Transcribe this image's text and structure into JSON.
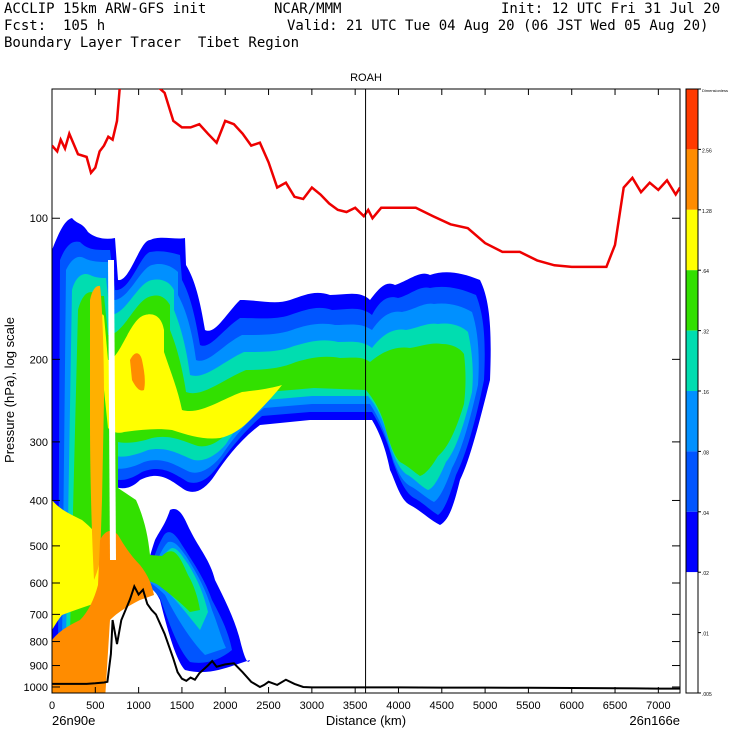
{
  "header": {
    "line1_left": "ACCLIP 15km ARW-GFS init",
    "line1_mid": "NCAR/MMM",
    "line1_right": "Init: 12 UTC Fri 31 Jul 20",
    "line2_left": "Fcst:  105 h",
    "line2_right": "Valid: 21 UTC Tue 04 Aug 20 (06 JST Wed 05 Aug 20)",
    "line3_left": "Boundary Layer Tracer  Tibet Region"
  },
  "chart_data": {
    "type": "heatmap",
    "title": "ROAH",
    "xlabel": "Distance (km)",
    "ylabel": "Pressure (hPa), log scale",
    "xlim": [
      0,
      7250
    ],
    "ylim": [
      1030,
      53
    ],
    "x_ticks": [
      0,
      500,
      1000,
      1500,
      2000,
      2500,
      3000,
      3500,
      4000,
      4500,
      5000,
      5500,
      6000,
      6500,
      7000
    ],
    "y_ticks": [
      100,
      200,
      300,
      400,
      500,
      600,
      700,
      800,
      900,
      1000
    ],
    "x_start_label": "26n90e",
    "x_end_label": "26n166e",
    "marker_line_x": 3620,
    "colorbar": {
      "levels": [
        "Dimensionless",
        "2.56",
        "1.28",
        ".64",
        ".32",
        ".16",
        ".08",
        ".04",
        ".02",
        ".01",
        ".005"
      ],
      "colors": [
        "#ff3a00",
        "#ff8c00",
        "#ffff00",
        "#32e000",
        "#00ddb0",
        "#0090ff",
        "#0055ff",
        "#0000ff",
        "#ffffff",
        "#ffffff"
      ]
    },
    "series": [
      {
        "name": "tropopause",
        "color": "#ee0000",
        "x": [
          0,
          60,
          100,
          150,
          200,
          300,
          400,
          450,
          500,
          550,
          600,
          650,
          700,
          750,
          800,
          900,
          1000,
          1050,
          1100,
          1150,
          1200,
          1300,
          1400,
          1500,
          1600,
          1700,
          1800,
          1900,
          2000,
          2100,
          2200,
          2300,
          2400,
          2500,
          2600,
          2700,
          2800,
          2900,
          3000,
          3100,
          3200,
          3300,
          3400,
          3500,
          3600,
          3650,
          3700,
          3800,
          3900,
          4000,
          4200,
          4400,
          4600,
          4800,
          5000,
          5200,
          5400,
          5600,
          5800,
          6000,
          6200,
          6400,
          6500,
          6600,
          6700,
          6800,
          6900,
          7000,
          7100,
          7200,
          7250
        ],
        "y": [
          70,
          72,
          68,
          71,
          66,
          73,
          74,
          80,
          78,
          72,
          70,
          67,
          68,
          62,
          48,
          48,
          48,
          52,
          50,
          47,
          52,
          54,
          62,
          64,
          64,
          63,
          66,
          69,
          62,
          63,
          66,
          70,
          69,
          76,
          86,
          84,
          90,
          91,
          86,
          89,
          93,
          96,
          97,
          95,
          99,
          96,
          100,
          95,
          95,
          95,
          95,
          99,
          103,
          105,
          113,
          118,
          118,
          123,
          126,
          127,
          127,
          127,
          114,
          86,
          82,
          88,
          84,
          87,
          83,
          89,
          86
        ]
      },
      {
        "name": "terrain",
        "color": "#000000",
        "x": [
          0,
          100,
          200,
          300,
          400,
          500,
          600,
          640,
          680,
          700,
          750,
          800,
          900,
          950,
          1000,
          1050,
          1100,
          1150,
          1200,
          1300,
          1400,
          1450,
          1500,
          1550,
          1600,
          1650,
          1700,
          1800,
          1850,
          1900,
          2000,
          2100,
          2200,
          2300,
          2400,
          2450,
          2500,
          2600,
          2700,
          2800,
          2900,
          3000,
          3500,
          4000,
          4500,
          5000,
          5500,
          6000,
          6500,
          7000,
          7250
        ],
        "y": [
          985,
          985,
          985,
          985,
          985,
          982,
          978,
          975,
          850,
          720,
          810,
          720,
          650,
          610,
          635,
          620,
          665,
          685,
          700,
          770,
          870,
          930,
          960,
          970,
          955,
          965,
          935,
          900,
          880,
          905,
          895,
          890,
          930,
          975,
          1000,
          990,
          975,
          990,
          965,
          985,
          1000,
          1002,
          1002,
          1002,
          1003,
          1003,
          1004,
          1005,
          1006,
          1008,
          1008
        ]
      }
    ]
  }
}
